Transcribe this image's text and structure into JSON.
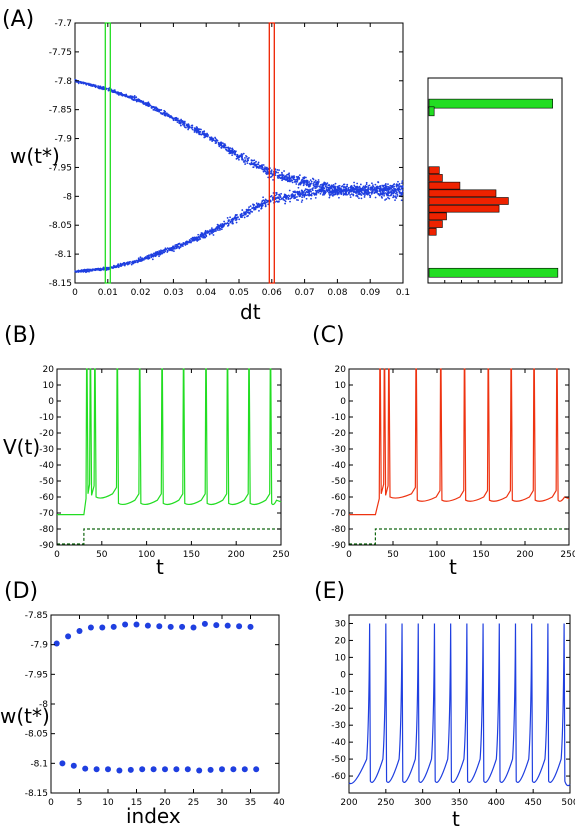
{
  "figure": {
    "panel_labels": [
      "(A)",
      "(B)",
      "(C)",
      "(D)",
      "(E)"
    ]
  },
  "chart_data": [
    {
      "id": "A",
      "type": "scatter",
      "xlabel": "dt",
      "ylabel": "w(t*)",
      "xlim": [
        0,
        0.1
      ],
      "ylim": [
        -8.15,
        -7.7
      ],
      "xticks": [
        "0",
        "0.01",
        "0.02",
        "0.03",
        "0.04",
        "0.05",
        "0.06",
        "0.07",
        "0.08",
        "0.09",
        "0.1"
      ],
      "yticks": [
        "-7.7",
        "-7.75",
        "-7.8",
        "-7.85",
        "-7.9",
        "-7.95",
        "-8",
        "-8.05",
        "-8.1",
        "-8.15"
      ],
      "color": "#1f3fe0",
      "branches": {
        "upper": [
          [
            0,
            -7.8
          ],
          [
            0.01,
            -7.815
          ],
          [
            0.02,
            -7.835
          ],
          [
            0.03,
            -7.865
          ],
          [
            0.04,
            -7.895
          ],
          [
            0.05,
            -7.93
          ],
          [
            0.06,
            -7.96
          ],
          [
            0.07,
            -7.975
          ],
          [
            0.08,
            -7.99
          ],
          [
            0.09,
            -7.99
          ],
          [
            0.1,
            -7.995
          ]
        ],
        "lower": [
          [
            0,
            -8.13
          ],
          [
            0.01,
            -8.125
          ],
          [
            0.02,
            -8.11
          ],
          [
            0.03,
            -8.09
          ],
          [
            0.04,
            -8.065
          ],
          [
            0.05,
            -8.035
          ],
          [
            0.06,
            -8.005
          ],
          [
            0.07,
            -7.995
          ],
          [
            0.08,
            -7.99
          ],
          [
            0.09,
            -7.99
          ],
          [
            0.1,
            -7.985
          ]
        ]
      },
      "highlight_windows": [
        {
          "x": 0.01,
          "color": "#22dd22"
        },
        {
          "x": 0.06,
          "color": "#ee2200"
        }
      ]
    },
    {
      "id": "A-hist",
      "type": "bar",
      "orientation": "horizontal",
      "series": [
        {
          "color": "#22dd22",
          "bins": [
            {
              "w": -7.8,
              "count": 120
            },
            {
              "w": -7.815,
              "count": 5
            },
            {
              "w": -8.13,
              "count": 125
            }
          ]
        },
        {
          "color": "#ee2200",
          "bins": [
            {
              "w": -7.93,
              "count": 10
            },
            {
              "w": -7.945,
              "count": 13
            },
            {
              "w": -7.96,
              "count": 30
            },
            {
              "w": -7.975,
              "count": 65
            },
            {
              "w": -7.99,
              "count": 77
            },
            {
              "w": -8.005,
              "count": 68
            },
            {
              "w": -8.02,
              "count": 17
            },
            {
              "w": -8.035,
              "count": 13
            },
            {
              "w": -8.05,
              "count": 7
            }
          ]
        }
      ]
    },
    {
      "id": "B",
      "type": "line",
      "xlabel": "t",
      "ylabel": "V(t)",
      "xlim": [
        0,
        250
      ],
      "ylim": [
        -90,
        20
      ],
      "xticks": [
        "0",
        "50",
        "100",
        "150",
        "200",
        "250"
      ],
      "yticks": [
        "20",
        "10",
        "0",
        "-10",
        "-20",
        "-30",
        "-40",
        "-50",
        "-60",
        "-70",
        "-80",
        "-90"
      ],
      "color": "#22dd22",
      "rest": -71,
      "onset": 30,
      "spike_times": [
        33,
        37,
        42,
        67,
        92,
        117,
        141,
        166,
        190,
        214,
        238
      ],
      "trough": -64,
      "stimulus": {
        "off": -90,
        "on": -80,
        "onset": 30,
        "color": "#116611"
      }
    },
    {
      "id": "C",
      "type": "line",
      "xlabel": "t",
      "xlim": [
        0,
        250
      ],
      "ylim": [
        -90,
        20
      ],
      "xticks": [
        "0",
        "50",
        "100",
        "150",
        "200",
        "250"
      ],
      "yticks": [
        "20",
        "10",
        "0",
        "-10",
        "-20",
        "-30",
        "-40",
        "-50",
        "-60",
        "-70",
        "-80",
        "-90"
      ],
      "color": "#ee3311",
      "rest": -71,
      "onset": 30,
      "spike_times": [
        35,
        40,
        45,
        76,
        104,
        131,
        158,
        184,
        210,
        236
      ],
      "trough": -62,
      "stimulus": {
        "off": -90,
        "on": -80,
        "onset": 30,
        "color": "#116611"
      }
    },
    {
      "id": "D",
      "type": "scatter",
      "xlabel": "index",
      "ylabel": "w(t*)",
      "xlim": [
        0,
        40
      ],
      "ylim": [
        -8.15,
        -7.85
      ],
      "xticks": [
        "0",
        "5",
        "10",
        "15",
        "20",
        "25",
        "30",
        "35",
        "40"
      ],
      "yticks": [
        "-7.85",
        "-7.9",
        "-7.95",
        "-8",
        "-8.05",
        "-8.1",
        "-8.15"
      ],
      "color": "#1f3fe0",
      "series": [
        {
          "x": [
            1,
            3,
            5,
            7,
            9,
            11,
            13,
            15,
            17,
            19,
            21,
            23,
            25,
            27,
            29,
            31,
            33,
            35
          ],
          "y": [
            -7.898,
            -7.886,
            -7.877,
            -7.871,
            -7.871,
            -7.87,
            -7.866,
            -7.866,
            -7.868,
            -7.869,
            -7.87,
            -7.87,
            -7.871,
            -7.865,
            -7.867,
            -7.868,
            -7.869,
            -7.87
          ]
        },
        {
          "x": [
            2,
            4,
            6,
            8,
            10,
            12,
            14,
            16,
            18,
            20,
            22,
            24,
            26,
            28,
            30,
            32,
            34,
            36
          ],
          "y": [
            -8.1,
            -8.104,
            -8.109,
            -8.11,
            -8.11,
            -8.112,
            -8.111,
            -8.11,
            -8.11,
            -8.11,
            -8.11,
            -8.11,
            -8.112,
            -8.111,
            -8.11,
            -8.11,
            -8.11,
            -8.11
          ]
        }
      ]
    },
    {
      "id": "E",
      "type": "line",
      "xlabel": "t",
      "xlim": [
        200,
        500
      ],
      "ylim": [
        -70,
        35
      ],
      "xticks": [
        "200",
        "250",
        "300",
        "350",
        "400",
        "450",
        "500"
      ],
      "yticks": [
        "30",
        "20",
        "10",
        "0",
        "-10",
        "-20",
        "-30",
        "-40",
        "-50",
        "-60"
      ],
      "color": "#1f3fe0",
      "spike_times": [
        228,
        250,
        272,
        294,
        316,
        338,
        360,
        382,
        404,
        426,
        448,
        470,
        492
      ],
      "trough": -66,
      "peak": 30
    }
  ]
}
